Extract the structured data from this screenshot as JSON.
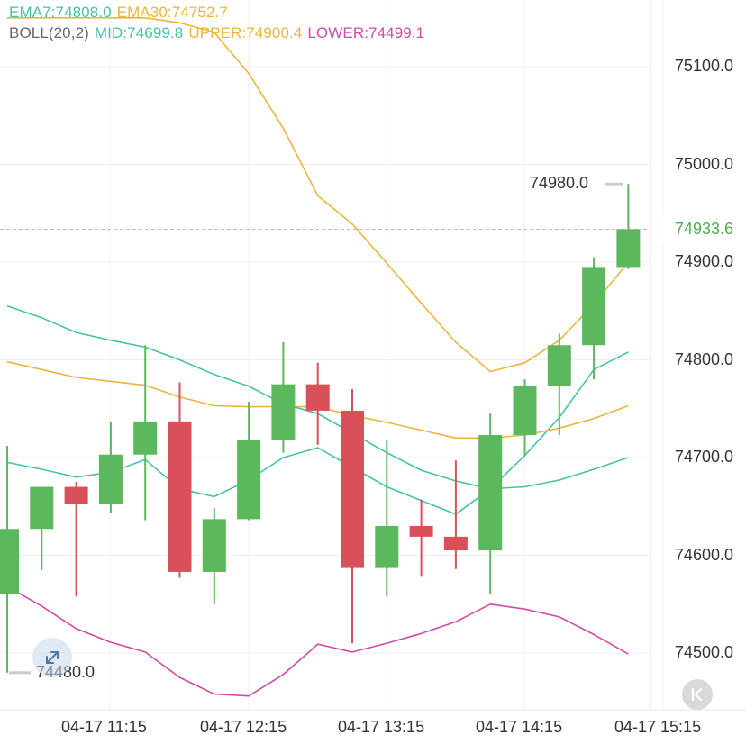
{
  "indicators": {
    "line1": [
      {
        "label": "EMA7:74808.0",
        "color": "#45c2a8"
      },
      {
        "label": "EMA30:74752.7",
        "color": "#e8b63c"
      }
    ],
    "line2": [
      {
        "label": "BOLL(20,2)",
        "color": "#666666"
      },
      {
        "label": "MID:74699.8",
        "color": "#45c2a8"
      },
      {
        "label": "UPPER:74900.4",
        "color": "#e8b63c"
      },
      {
        "label": "LOWER:74499.1",
        "color": "#d14aa6"
      }
    ]
  },
  "price_axis": [
    "75100.0",
    "75000.0",
    "74900.0",
    "74800.0",
    "74700.0",
    "74600.0",
    "74500.0"
  ],
  "time_axis": [
    "04-17 11:15",
    "04-17 12:15",
    "04-17 13:15",
    "04-17 14:15",
    "04-17 15:15"
  ],
  "current_price": "74933.6",
  "high_marker": "74980.0",
  "low_marker": "74480.0",
  "icons": {
    "expand": "expand-arrows-icon",
    "back": "back-to-latest-icon"
  },
  "colors": {
    "up": "#5cb85c",
    "down": "#d9505a",
    "ema7": "#45c2a8",
    "ema30": "#e8b63c",
    "upper": "#e8b63c",
    "lower": "#d14aa6"
  },
  "chart_data": {
    "type": "candlestick",
    "ylim": [
      74450,
      75170
    ],
    "candles": [
      {
        "o": 74560,
        "h": 74712,
        "l": 74480,
        "c": 74627
      },
      {
        "o": 74627,
        "h": 74670,
        "l": 74585,
        "c": 74670
      },
      {
        "o": 74670,
        "h": 74675,
        "l": 74558,
        "c": 74653
      },
      {
        "o": 74653,
        "h": 74737,
        "l": 74643,
        "c": 74703
      },
      {
        "o": 74703,
        "h": 74815,
        "l": 74636,
        "c": 74737
      },
      {
        "o": 74737,
        "h": 74777,
        "l": 74577,
        "c": 74583
      },
      {
        "o": 74583,
        "h": 74648,
        "l": 74550,
        "c": 74637
      },
      {
        "o": 74637,
        "h": 74757,
        "l": 74636,
        "c": 74718
      },
      {
        "o": 74718,
        "h": 74818,
        "l": 74705,
        "c": 74775
      },
      {
        "o": 74775,
        "h": 74797,
        "l": 74713,
        "c": 74748
      },
      {
        "o": 74748,
        "h": 74770,
        "l": 74510,
        "c": 74587
      },
      {
        "o": 74587,
        "h": 74718,
        "l": 74558,
        "c": 74630
      },
      {
        "o": 74630,
        "h": 74657,
        "l": 74578,
        "c": 74619
      },
      {
        "o": 74619,
        "h": 74697,
        "l": 74586,
        "c": 74605
      },
      {
        "o": 74605,
        "h": 74745,
        "l": 74560,
        "c": 74723
      },
      {
        "o": 74723,
        "h": 74780,
        "l": 74702,
        "c": 74773
      },
      {
        "o": 74773,
        "h": 74827,
        "l": 74723,
        "c": 74815
      },
      {
        "o": 74815,
        "h": 74905,
        "l": 74780,
        "c": 74895
      },
      {
        "o": 74895,
        "h": 74980,
        "l": 74893,
        "c": 74934
      }
    ],
    "series": [
      {
        "name": "EMA7",
        "values": [
          74695,
          74688,
          74680,
          74685,
          74698,
          74668,
          74660,
          74677,
          74700,
          74710,
          74690,
          74670,
          74656,
          74642,
          74668,
          74702,
          74741,
          74790,
          74808
        ]
      },
      {
        "name": "EMA30",
        "values": [
          74798,
          74790,
          74782,
          74778,
          74774,
          74762,
          74753,
          74752,
          74752,
          74752,
          74743,
          74736,
          74728,
          74720,
          74720,
          74723,
          74730,
          74740,
          74753
        ]
      },
      {
        "name": "MID",
        "values": [
          74855,
          74843,
          74828,
          74820,
          74813,
          74800,
          74785,
          74773,
          74755,
          74745,
          74725,
          74705,
          74687,
          74676,
          74668,
          74670,
          74677,
          74688,
          74700
        ]
      },
      {
        "name": "UPPER",
        "values": [
          75150,
          75150,
          75150,
          75150,
          75150,
          75145,
          75135,
          75093,
          75037,
          74968,
          74939,
          74899,
          74858,
          74818,
          74788,
          74797,
          74820,
          74857,
          74900
        ]
      },
      {
        "name": "LOWER",
        "values": [
          74568,
          74548,
          74525,
          74511,
          74501,
          74475,
          74458,
          74456,
          74478,
          74509,
          74501,
          74510,
          74520,
          74532,
          74550,
          74545,
          74537,
          74519,
          74499
        ]
      }
    ]
  }
}
